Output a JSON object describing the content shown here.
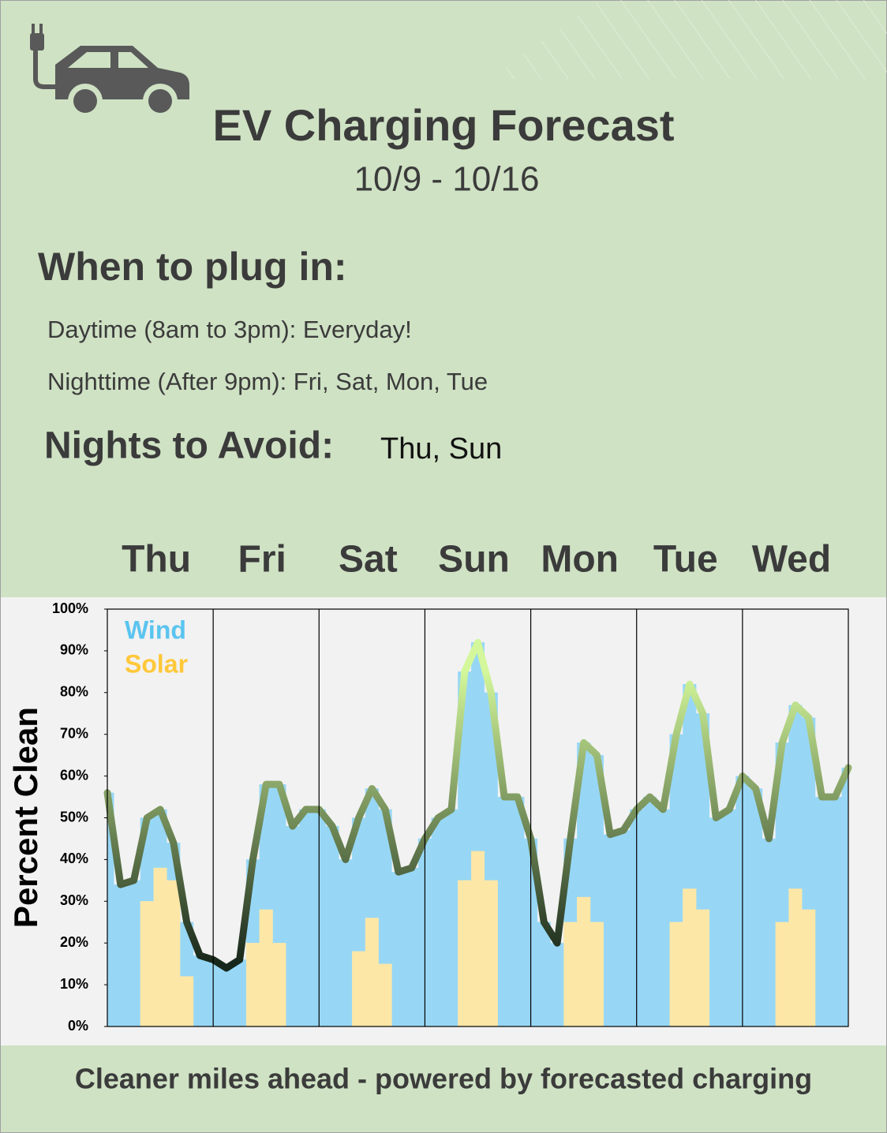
{
  "header": {
    "title": "EV Charging Forecast",
    "subtitle": "10/9 - 10/16"
  },
  "plug_in": {
    "heading": "When to plug in:",
    "daytime": "Daytime (8am to 3pm): Everyday!",
    "nighttime": "Nighttime  (After 9pm): Fri, Sat, Mon, Tue"
  },
  "avoid": {
    "heading": "Nights to Avoid:",
    "days": "Thu, Sun"
  },
  "chart_data": {
    "type": "bar",
    "y_label": "Percent Clean",
    "days": [
      "Thu",
      "Fri",
      "Sat",
      "Sun",
      "Mon",
      "Tue",
      "Wed"
    ],
    "series": [
      {
        "name": "Wind",
        "color": "#97d7f5",
        "values": [
          56,
          34,
          35,
          50,
          52,
          44,
          25,
          17,
          16,
          14,
          16,
          40,
          58,
          58,
          48,
          52,
          52,
          48,
          40,
          50,
          57,
          52,
          37,
          38,
          45,
          50,
          52,
          85,
          92,
          80,
          55,
          55,
          45,
          25,
          20,
          45,
          68,
          65,
          46,
          47,
          52,
          55,
          52,
          70,
          82,
          75,
          50,
          52,
          60,
          57,
          45,
          68,
          77,
          74,
          55,
          55,
          62
        ]
      },
      {
        "name": "Solar",
        "color": "#fde7a7",
        "values": [
          0,
          0,
          0,
          30,
          38,
          35,
          12,
          0,
          0,
          0,
          0,
          20,
          28,
          20,
          0,
          0,
          0,
          0,
          0,
          18,
          26,
          15,
          0,
          0,
          0,
          0,
          0,
          35,
          42,
          35,
          0,
          0,
          0,
          0,
          0,
          25,
          31,
          25,
          0,
          0,
          0,
          0,
          0,
          25,
          33,
          28,
          0,
          0,
          0,
          0,
          0,
          25,
          33,
          28,
          0,
          0,
          0
        ]
      }
    ],
    "line_color_low": "#17261a",
    "line_color_high": "#d3f79a",
    "legend_colors": {
      "Wind": "#5bc4f0",
      "Solar": "#ffc83a"
    },
    "ylim": [
      0,
      100
    ],
    "yticks": [
      {
        "value": 0,
        "label": "0%"
      },
      {
        "value": 10,
        "label": "10%"
      },
      {
        "value": 20,
        "label": "20%"
      },
      {
        "value": 30,
        "label": "30%"
      },
      {
        "value": 40,
        "label": "40%"
      },
      {
        "value": 50,
        "label": "50%"
      },
      {
        "value": 60,
        "label": "60%"
      },
      {
        "value": 70,
        "label": "70%"
      },
      {
        "value": 80,
        "label": "80%"
      },
      {
        "value": 90,
        "label": "90%"
      },
      {
        "value": 100,
        "label": "100%"
      }
    ]
  },
  "footer": "Cleaner miles ahead - powered by forecasted charging"
}
